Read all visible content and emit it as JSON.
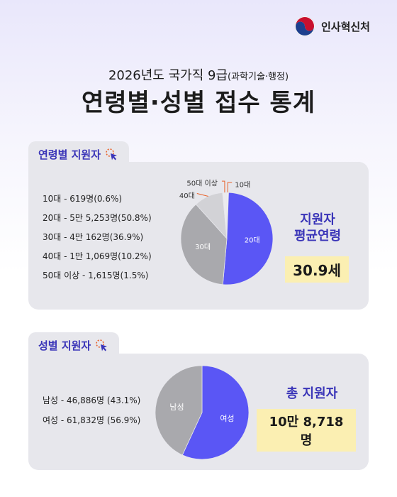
{
  "org_name": "인사혁신처",
  "subtitle": "2026년도 국가직 9급",
  "subtitle_paren": "(과학기술·행정)",
  "title": "연령별·성별 접수 통계",
  "age_section": {
    "tab_label": "연령별 지원자",
    "rows": [
      "10대 - 619명(0.6%)",
      "20대 - 5만 5,253명(50.8%)",
      "30대 - 4만 162명(36.9%)",
      "40대 - 1만 1,069명(10.2%)",
      "50대 이상 - 1,615명(1.5%)"
    ],
    "avg_label_1": "지원자",
    "avg_label_2": "평균연령",
    "avg_value": "30.9세"
  },
  "gender_section": {
    "tab_label": "성별 지원자",
    "rows": [
      "남성 - 46,886명 (43.1%)",
      "여성 - 61,832명 (56.9%)"
    ],
    "total_label": "총 지원자",
    "total_value": "10만 8,718명"
  },
  "colors": {
    "accent": "#5a56f5",
    "grey": "#a9a9ad",
    "light_grey": "#d2d2d6",
    "highlight": "#fbefb2",
    "tab_text": "#3a35b8"
  },
  "chart_data": [
    {
      "type": "pie",
      "categories": [
        "10대",
        "20대",
        "30대",
        "40대",
        "50대 이상"
      ],
      "values": [
        0.6,
        50.8,
        36.9,
        10.2,
        1.5
      ],
      "slice_labels": [
        "10대",
        "20대",
        "30대",
        "40대",
        "50대 이상"
      ]
    },
    {
      "type": "pie",
      "categories": [
        "남성",
        "여성"
      ],
      "values": [
        43.1,
        56.9
      ],
      "slice_labels": [
        "남성",
        "여성"
      ]
    }
  ]
}
